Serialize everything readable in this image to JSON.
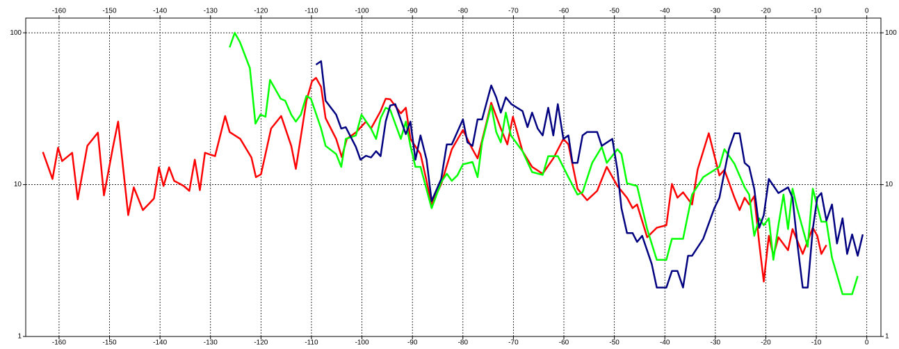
{
  "chart_data": {
    "type": "line",
    "log_y": true,
    "grid": true,
    "xlim": [
      -166.6,
      2.8
    ],
    "ylim": [
      1,
      125
    ],
    "xticks": [
      -160,
      -150,
      -140,
      -130,
      -120,
      -110,
      -100,
      -90,
      -80,
      -70,
      -60,
      -50,
      -40,
      -30,
      -20,
      -10,
      0
    ],
    "yticks": [
      1,
      10,
      100
    ],
    "series": [
      {
        "color": "#ff0000",
        "x": [
          -163.2,
          -161.3,
          -160.2,
          -159.4,
          -157.4,
          -156.3,
          -154.4,
          -152.3,
          -151.1,
          -149.3,
          -148.3,
          -146.3,
          -145.2,
          -143.4,
          -141.2,
          -140.2,
          -139.3,
          -138.2,
          -137.2,
          -135.3,
          -134.2,
          -133.1,
          -132.1,
          -131.1,
          -129.1,
          -127.1,
          -126.2,
          -124.1,
          -121.9,
          -121.0,
          -120.0,
          -118.0,
          -116.0,
          -114.0,
          -113.1,
          -111.0,
          -109.9,
          -109.1,
          -108.1,
          -107.2,
          -105.1,
          -104.0,
          -103.0,
          -101.1,
          -99.2,
          -98.2,
          -96.3,
          -95.3,
          -94.4,
          -92.3,
          -91.3,
          -90.4,
          -88.4,
          -87.2,
          -86.2,
          -84.3,
          -82.2,
          -80.0,
          -78.1,
          -77.1,
          -75.3,
          -74.4,
          -72.5,
          -71.2,
          -70.1,
          -68.2,
          -66.3,
          -64.2,
          -62.1,
          -60.1,
          -59.1,
          -57.3,
          -55.4,
          -53.4,
          -51.5,
          -49.4,
          -47.5,
          -46.4,
          -45.5,
          -43.5,
          -41.6,
          -39.7,
          -38.6,
          -37.5,
          -36.4,
          -34.6,
          -33.5,
          -31.3,
          -29.2,
          -28.2,
          -26.2,
          -25.2,
          -24.2,
          -23.3,
          -22.3,
          -21.3,
          -20.4,
          -19.4,
          -18.5,
          -17.5,
          -15.6,
          -14.7,
          -12.7,
          -10.7,
          -9.8,
          -9.0,
          -8.0
        ],
        "values": [
          16.4,
          10.9,
          17.5,
          14.3,
          16.2,
          8.0,
          18.0,
          22.0,
          8.5,
          17.8,
          26.0,
          6.3,
          9.6,
          6.8,
          8.1,
          13.0,
          9.8,
          13.0,
          10.6,
          9.8,
          9.1,
          14.6,
          9.2,
          16.2,
          15.4,
          28.3,
          22.2,
          20.0,
          15.1,
          11.2,
          11.7,
          23.4,
          28.3,
          18.0,
          12.7,
          35.7,
          47.9,
          50.5,
          44.0,
          27.4,
          20.0,
          15.2,
          20.0,
          22.2,
          26.0,
          23.4,
          30.5,
          36.8,
          36.5,
          29.5,
          32.1,
          20.0,
          15.9,
          10.6,
          7.4,
          10.1,
          17.1,
          22.9,
          17.1,
          14.9,
          25.8,
          34.6,
          23.4,
          18.4,
          28.0,
          16.6,
          13.1,
          11.8,
          14.9,
          20.0,
          18.4,
          9.4,
          7.9,
          9.1,
          13.1,
          9.8,
          8.2,
          7.0,
          7.4,
          4.5,
          5.2,
          5.4,
          10.1,
          8.2,
          8.9,
          7.4,
          12.6,
          21.8,
          11.5,
          12.5,
          8.2,
          6.8,
          8.2,
          7.4,
          8.4,
          4.1,
          2.3,
          4.6,
          3.4,
          4.5,
          3.7,
          5.1,
          3.5,
          5.2,
          4.6,
          3.5,
          4.0
        ]
      },
      {
        "color": "#00ff00",
        "x": [
          -126.2,
          -125.2,
          -124.2,
          -122.2,
          -121.1,
          -120.1,
          -119.1,
          -118.2,
          -116.1,
          -115.2,
          -114.0,
          -113.1,
          -112.1,
          -111.0,
          -110.1,
          -108.1,
          -107.2,
          -105.1,
          -104.1,
          -103.2,
          -101.2,
          -100.1,
          -98.2,
          -97.2,
          -96.3,
          -95.3,
          -94.4,
          -92.3,
          -91.3,
          -90.4,
          -89.4,
          -88.4,
          -86.2,
          -84.3,
          -83.2,
          -82.2,
          -81.1,
          -80.0,
          -78.1,
          -77.1,
          -76.2,
          -74.4,
          -73.4,
          -72.5,
          -71.5,
          -70.5,
          -68.2,
          -66.3,
          -64.2,
          -63.1,
          -61.2,
          -59.1,
          -57.3,
          -56.3,
          -54.4,
          -52.5,
          -51.5,
          -49.4,
          -48.6,
          -47.5,
          -45.5,
          -43.5,
          -41.6,
          -39.7,
          -38.6,
          -36.4,
          -34.6,
          -32.4,
          -29.2,
          -28.2,
          -26.2,
          -24.2,
          -23.3,
          -22.3,
          -21.3,
          -20.4,
          -19.4,
          -18.5,
          -17.5,
          -16.5,
          -15.6,
          -14.7,
          -13.8,
          -11.7,
          -10.7,
          -9.0,
          -8.0,
          -6.9,
          -4.8,
          -2.9,
          -1.8
        ],
        "values": [
          80.2,
          100,
          87.3,
          58.5,
          25.2,
          28.9,
          28.0,
          48.9,
          36.8,
          35.7,
          28.9,
          26.0,
          28.9,
          38.4,
          36.8,
          23.4,
          18.0,
          15.9,
          13.1,
          20.0,
          21.1,
          28.9,
          23.4,
          20.0,
          27.4,
          32.1,
          31.1,
          20.0,
          26.0,
          18.0,
          13.1,
          13.1,
          7.0,
          10.4,
          11.8,
          10.6,
          11.5,
          13.6,
          14.1,
          11.2,
          19.0,
          33.2,
          22.2,
          19.0,
          29.8,
          21.1,
          16.6,
          12.1,
          11.6,
          15.4,
          15.4,
          11.2,
          8.6,
          8.9,
          13.9,
          17.7,
          13.9,
          17.1,
          15.9,
          10.2,
          9.8,
          5.1,
          3.2,
          3.2,
          4.4,
          4.4,
          8.6,
          11.2,
          13.1,
          17.1,
          13.7,
          9.6,
          8.6,
          4.6,
          6.0,
          5.4,
          6.0,
          3.2,
          5.4,
          8.6,
          5.1,
          9.4,
          7.0,
          3.9,
          9.4,
          5.7,
          5.7,
          3.3,
          1.9,
          1.9,
          2.5
        ]
      },
      {
        "color": "#000080",
        "x": [
          -109.1,
          -108.1,
          -107.2,
          -105.1,
          -104.1,
          -103.2,
          -101.2,
          -100.3,
          -99.2,
          -98.2,
          -97.2,
          -96.3,
          -95.3,
          -94.4,
          -93.4,
          -91.3,
          -90.4,
          -89.4,
          -88.4,
          -87.2,
          -86.2,
          -84.3,
          -83.2,
          -82.2,
          -80.0,
          -79.1,
          -78.1,
          -77.1,
          -76.2,
          -74.4,
          -73.4,
          -72.5,
          -71.5,
          -70.4,
          -68.2,
          -67.2,
          -66.3,
          -65.2,
          -64.2,
          -63.1,
          -62.1,
          -61.2,
          -60.1,
          -59.1,
          -58.3,
          -57.3,
          -56.3,
          -55.4,
          -53.4,
          -52.5,
          -50.4,
          -49.4,
          -48.6,
          -47.5,
          -46.4,
          -45.5,
          -44.5,
          -42.6,
          -41.6,
          -39.7,
          -38.6,
          -37.5,
          -36.4,
          -35.4,
          -34.6,
          -32.4,
          -30.2,
          -29.2,
          -28.2,
          -27.3,
          -26.2,
          -25.2,
          -24.2,
          -23.3,
          -22.3,
          -21.3,
          -20.4,
          -19.4,
          -17.5,
          -15.6,
          -14.7,
          -13.8,
          -12.7,
          -11.7,
          -10.7,
          -9.8,
          -9.0,
          -8.0,
          -6.9,
          -5.9,
          -4.8,
          -3.9,
          -2.9,
          -1.8,
          -0.8
        ],
        "values": [
          61.7,
          65.0,
          35.7,
          28.9,
          23.4,
          23.9,
          17.7,
          14.6,
          15.5,
          15.1,
          16.6,
          15.4,
          26.0,
          33.2,
          33.9,
          21.5,
          26.0,
          14.6,
          21.1,
          14.6,
          7.8,
          10.9,
          18.4,
          18.4,
          26.9,
          19.0,
          18.0,
          26.9,
          26.9,
          45.0,
          37.6,
          29.8,
          37.6,
          33.9,
          30.5,
          23.9,
          29.8,
          23.4,
          21.1,
          32.1,
          21.1,
          33.9,
          20.0,
          21.1,
          13.9,
          13.9,
          21.1,
          22.2,
          22.2,
          18.0,
          20.0,
          12.5,
          7.0,
          4.8,
          4.8,
          4.2,
          4.6,
          3.0,
          2.1,
          2.1,
          2.7,
          2.7,
          2.1,
          3.4,
          3.4,
          4.4,
          7.0,
          8.2,
          12.1,
          17.1,
          21.8,
          21.8,
          13.9,
          13.1,
          9.4,
          5.2,
          6.3,
          10.9,
          8.8,
          9.6,
          8.2,
          4.2,
          2.1,
          2.1,
          5.1,
          8.2,
          8.8,
          5.8,
          7.4,
          4.1,
          6.0,
          3.5,
          4.7,
          3.4,
          4.7
        ]
      }
    ]
  }
}
